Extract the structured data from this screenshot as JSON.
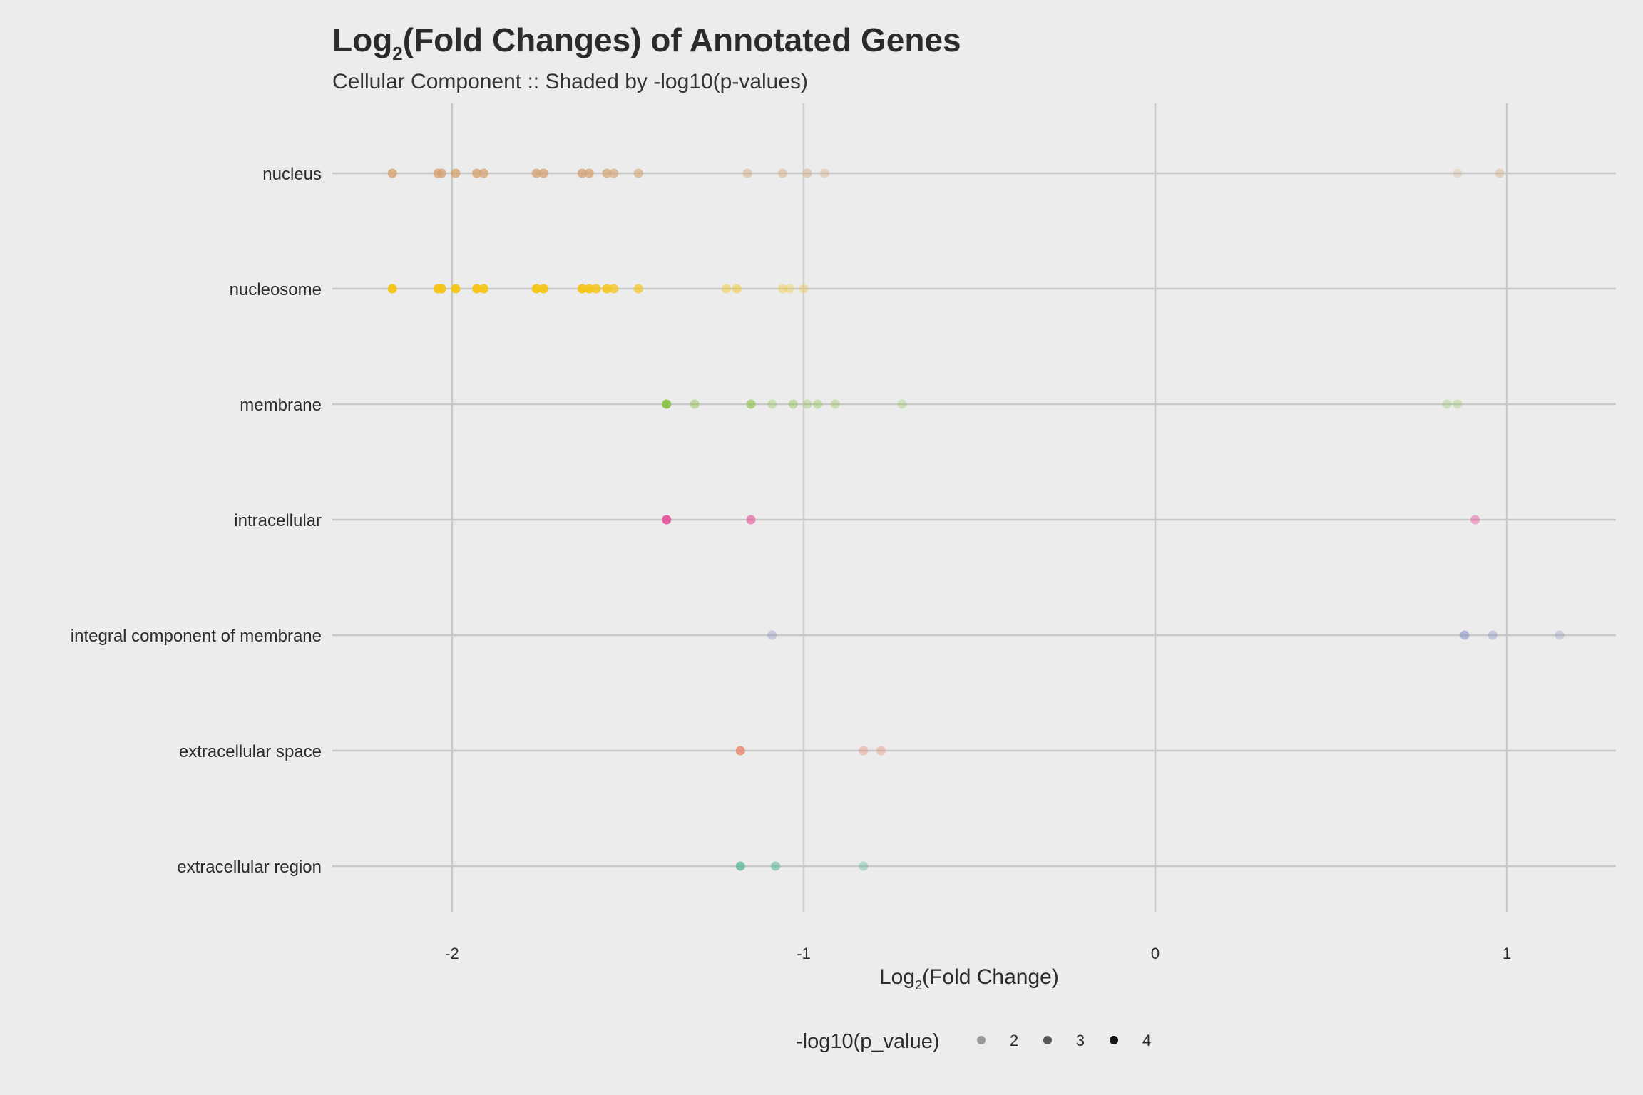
{
  "chart_data": {
    "type": "scatter",
    "title": {
      "main": "Log",
      "sub": "2",
      "rest": "(Fold Changes) of Annotated Genes"
    },
    "subtitle": "Cellular Component :: Shaded by -log10(p-values)",
    "xlabel": {
      "main": "Log",
      "sub": "2",
      "rest": "(Fold Change)"
    },
    "xlim": [
      -2.33,
      1.31
    ],
    "xticks": [
      -2,
      -1,
      0,
      1
    ],
    "xtick_labels": [
      "-2",
      "-1",
      "0",
      "1"
    ],
    "grid": true,
    "legend": {
      "title": "-log10(p_value)",
      "placement": "bottom",
      "entries": [
        {
          "label": "2",
          "value": 2
        },
        {
          "label": "3",
          "value": 3
        },
        {
          "label": "4",
          "value": 4
        }
      ]
    },
    "alpha_scale": {
      "min_p": 1.3,
      "max_p": 4.3,
      "min_alpha": 0.15,
      "max_alpha": 1.0
    },
    "categories": [
      "nucleus",
      "nucleosome",
      "membrane",
      "intracellular",
      "integral component of membrane",
      "extracellular space",
      "extracellular region"
    ],
    "series": [
      {
        "category": "nucleus",
        "color": "#d4a373",
        "points": [
          {
            "x": -2.17,
            "p": 3.6
          },
          {
            "x": -2.04,
            "p": 3.6
          },
          {
            "x": -2.03,
            "p": 3.5
          },
          {
            "x": -1.99,
            "p": 3.6
          },
          {
            "x": -1.93,
            "p": 3.6
          },
          {
            "x": -1.91,
            "p": 3.5
          },
          {
            "x": -1.76,
            "p": 3.6
          },
          {
            "x": -1.74,
            "p": 3.5
          },
          {
            "x": -1.63,
            "p": 3.6
          },
          {
            "x": -1.61,
            "p": 3.5
          },
          {
            "x": -1.56,
            "p": 3.3
          },
          {
            "x": -1.54,
            "p": 3.0
          },
          {
            "x": -1.47,
            "p": 2.9
          },
          {
            "x": -1.16,
            "p": 2.3
          },
          {
            "x": -1.06,
            "p": 2.3
          },
          {
            "x": -0.99,
            "p": 2.3
          },
          {
            "x": -0.94,
            "p": 1.9
          },
          {
            "x": 0.86,
            "p": 1.6
          },
          {
            "x": 0.98,
            "p": 2.0
          }
        ]
      },
      {
        "category": "nucleosome",
        "color": "#f5c518",
        "points": [
          {
            "x": -2.17,
            "p": 4.2
          },
          {
            "x": -2.04,
            "p": 4.2
          },
          {
            "x": -2.03,
            "p": 4.1
          },
          {
            "x": -1.99,
            "p": 4.2
          },
          {
            "x": -1.93,
            "p": 4.2
          },
          {
            "x": -1.91,
            "p": 4.1
          },
          {
            "x": -1.76,
            "p": 4.2
          },
          {
            "x": -1.74,
            "p": 4.1
          },
          {
            "x": -1.63,
            "p": 4.2
          },
          {
            "x": -1.61,
            "p": 4.1
          },
          {
            "x": -1.59,
            "p": 3.8
          },
          {
            "x": -1.56,
            "p": 3.9
          },
          {
            "x": -1.54,
            "p": 3.4
          },
          {
            "x": -1.47,
            "p": 3.2
          },
          {
            "x": -1.22,
            "p": 2.3
          },
          {
            "x": -1.19,
            "p": 2.5
          },
          {
            "x": -1.06,
            "p": 2.0
          },
          {
            "x": -1.04,
            "p": 1.9
          },
          {
            "x": -1.0,
            "p": 1.8
          }
        ]
      },
      {
        "category": "membrane",
        "color": "#8bc34a",
        "points": [
          {
            "x": -1.39,
            "p": 4.2
          },
          {
            "x": -1.31,
            "p": 2.4
          },
          {
            "x": -1.15,
            "p": 3.0
          },
          {
            "x": -1.09,
            "p": 2.0
          },
          {
            "x": -1.03,
            "p": 2.3
          },
          {
            "x": -0.99,
            "p": 2.0
          },
          {
            "x": -0.96,
            "p": 2.2
          },
          {
            "x": -0.91,
            "p": 2.0
          },
          {
            "x": -0.72,
            "p": 1.8
          },
          {
            "x": 0.83,
            "p": 1.8
          },
          {
            "x": 0.86,
            "p": 1.8
          }
        ]
      },
      {
        "category": "intracellular",
        "color": "#e6559c",
        "points": [
          {
            "x": -1.39,
            "p": 4.1
          },
          {
            "x": -1.15,
            "p": 3.0
          },
          {
            "x": 0.91,
            "p": 2.4
          }
        ]
      },
      {
        "category": "integral component of membrane",
        "color": "#8e97c4",
        "points": [
          {
            "x": -1.09,
            "p": 2.2
          },
          {
            "x": 0.88,
            "p": 3.0
          },
          {
            "x": 0.96,
            "p": 2.3
          },
          {
            "x": 1.15,
            "p": 2.0
          }
        ]
      },
      {
        "category": "extracellular space",
        "color": "#e8846a",
        "points": [
          {
            "x": -1.18,
            "p": 3.5
          },
          {
            "x": -0.83,
            "p": 2.1
          },
          {
            "x": -0.78,
            "p": 2.0
          }
        ]
      },
      {
        "category": "extracellular region",
        "color": "#5cb89a",
        "points": [
          {
            "x": -1.18,
            "p": 3.5
          },
          {
            "x": -1.08,
            "p": 2.8
          },
          {
            "x": -0.83,
            "p": 2.2
          }
        ]
      }
    ]
  }
}
